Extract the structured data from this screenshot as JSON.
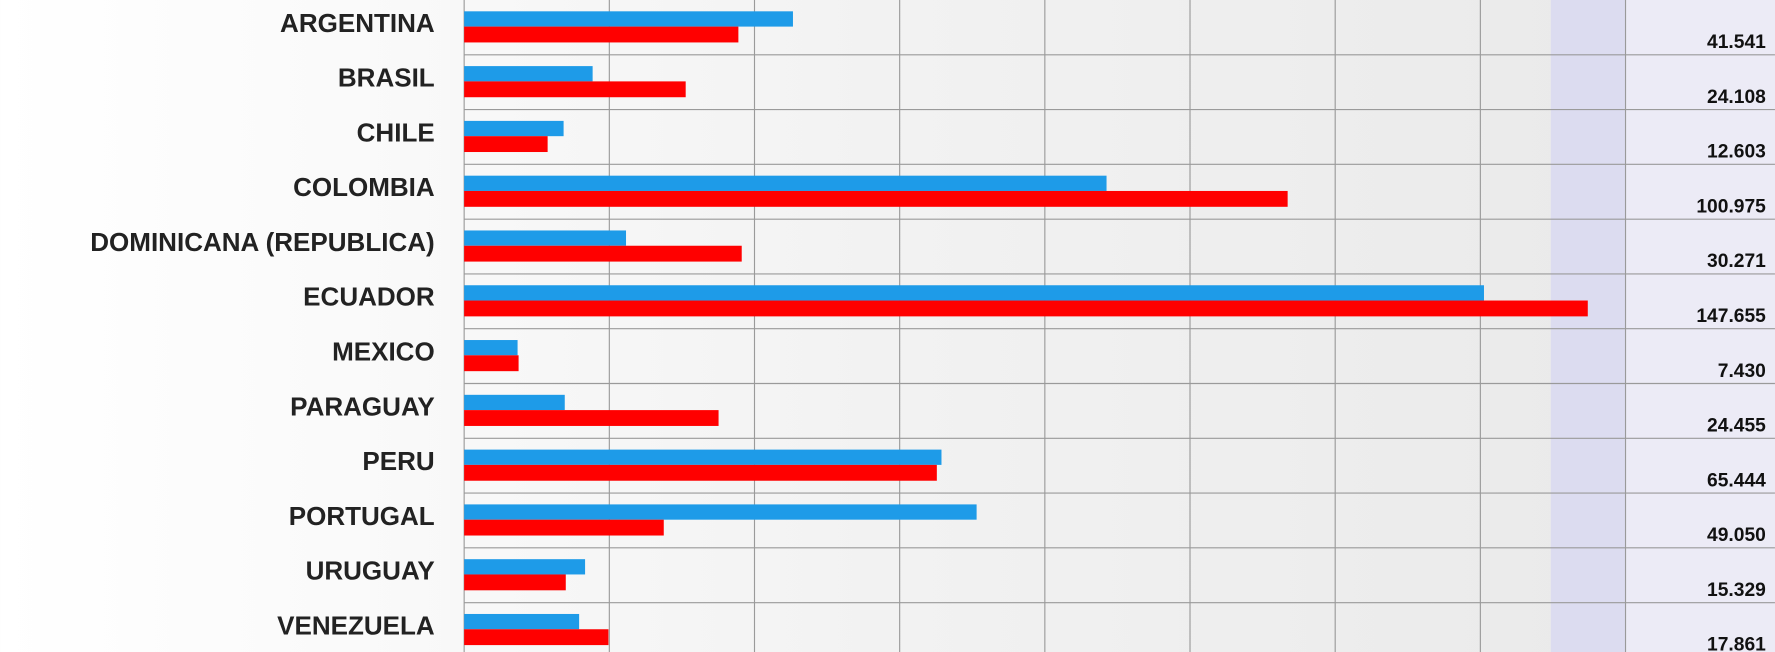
{
  "chart_data": {
    "type": "bar",
    "orientation": "horizontal",
    "categories": [
      "ARGENTINA",
      "BRASIL",
      "CHILE",
      "COLOMBIA",
      "DOMINICANA (REPUBLICA)",
      "ECUADOR",
      "MEXICO",
      "PARAGUAY",
      "PERU",
      "PORTUGAL",
      "URUGUAY",
      "VENEZUELA"
    ],
    "series": [
      {
        "color": "#1e9be8",
        "values": [
          22650,
          8850,
          6850,
          44250,
          11150,
          70250,
          3680,
          6930,
          32880,
          35300,
          8330,
          7920
        ]
      },
      {
        "color": "#ff0000",
        "values": [
          18890,
          15260,
          5750,
          56725,
          19120,
          77400,
          3750,
          17525,
          32560,
          13750,
          7000,
          9940
        ]
      }
    ],
    "totals": [
      41541,
      24108,
      12603,
      100975,
      30271,
      147655,
      7430,
      24455,
      65444,
      49050,
      15329,
      17861
    ],
    "total_labels": [
      "41.541",
      "24.108",
      "12.603",
      "100.975",
      "30.271",
      "147.655",
      "7.430",
      "24.455",
      "65.444",
      "49.050",
      "15.329",
      "17.861"
    ],
    "xlim": [
      0,
      80000
    ],
    "xticks": [
      0,
      10000,
      20000,
      30000,
      40000,
      50000,
      60000,
      70000,
      80000
    ],
    "grid": true
  }
}
